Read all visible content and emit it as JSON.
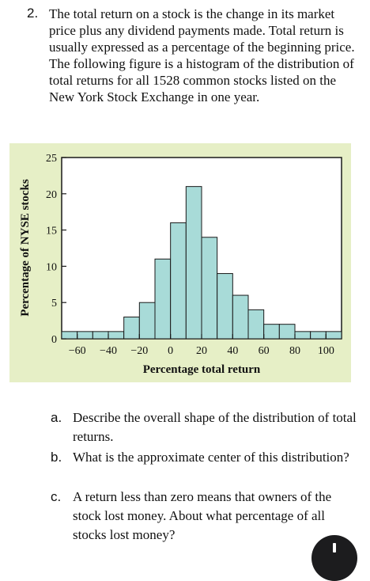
{
  "question": {
    "number": "2.",
    "text": "The total return on a stock is the change in its market price plus any dividend payments made. Total return is usually expressed as a percentage of the beginning price. The following figure is a histogram of the distribution of total returns for all 1528 common stocks listed on the New York Stock Exchange in one year."
  },
  "chart_data": {
    "type": "bar",
    "bins": [
      {
        "from": -70,
        "to": -60,
        "value": 1
      },
      {
        "from": -60,
        "to": -50,
        "value": 1
      },
      {
        "from": -50,
        "to": -40,
        "value": 1
      },
      {
        "from": -40,
        "to": -30,
        "value": 1
      },
      {
        "from": -30,
        "to": -20,
        "value": 3
      },
      {
        "from": -20,
        "to": -10,
        "value": 5
      },
      {
        "from": -10,
        "to": 0,
        "value": 11
      },
      {
        "from": 0,
        "to": 10,
        "value": 16
      },
      {
        "from": 10,
        "to": 20,
        "value": 21
      },
      {
        "from": 20,
        "to": 30,
        "value": 14
      },
      {
        "from": 30,
        "to": 40,
        "value": 9
      },
      {
        "from": 40,
        "to": 50,
        "value": 6
      },
      {
        "from": 50,
        "to": 60,
        "value": 4
      },
      {
        "from": 60,
        "to": 70,
        "value": 2
      },
      {
        "from": 70,
        "to": 80,
        "value": 2
      },
      {
        "from": 80,
        "to": 90,
        "value": 1
      },
      {
        "from": 90,
        "to": 100,
        "value": 1
      },
      {
        "from": 100,
        "to": 110,
        "value": 1
      }
    ],
    "xlabel": "Percentage total return",
    "ylabel": "Percentage of NYSE stocks",
    "xlim": [
      -70,
      110
    ],
    "ylim": [
      0,
      25
    ],
    "xticks": [
      -60,
      -40,
      -20,
      0,
      20,
      40,
      60,
      80,
      100
    ],
    "xtick_labels": [
      "−60",
      "−40",
      "−20",
      "0",
      "20",
      "40",
      "60",
      "80",
      "100"
    ],
    "yticks": [
      0,
      5,
      10,
      15,
      20,
      25
    ],
    "ytick_labels": [
      "0",
      "5",
      "10",
      "15",
      "20",
      "25"
    ],
    "grid": false,
    "colors": {
      "bar_fill": "#a8dbd8",
      "bar_edge": "#1a1a1a",
      "background": "#e6efc6",
      "plot_area": "#ffffff"
    }
  },
  "parts": [
    {
      "letter": "a.",
      "text": "Describe the overall shape of the distribution of total returns."
    },
    {
      "letter": "b.",
      "text": "What is the approximate center of this distribution?"
    },
    {
      "letter": "c.",
      "text": "A return less than zero means that owners of the stock lost money. About what percentage of all stocks lost money?"
    }
  ]
}
